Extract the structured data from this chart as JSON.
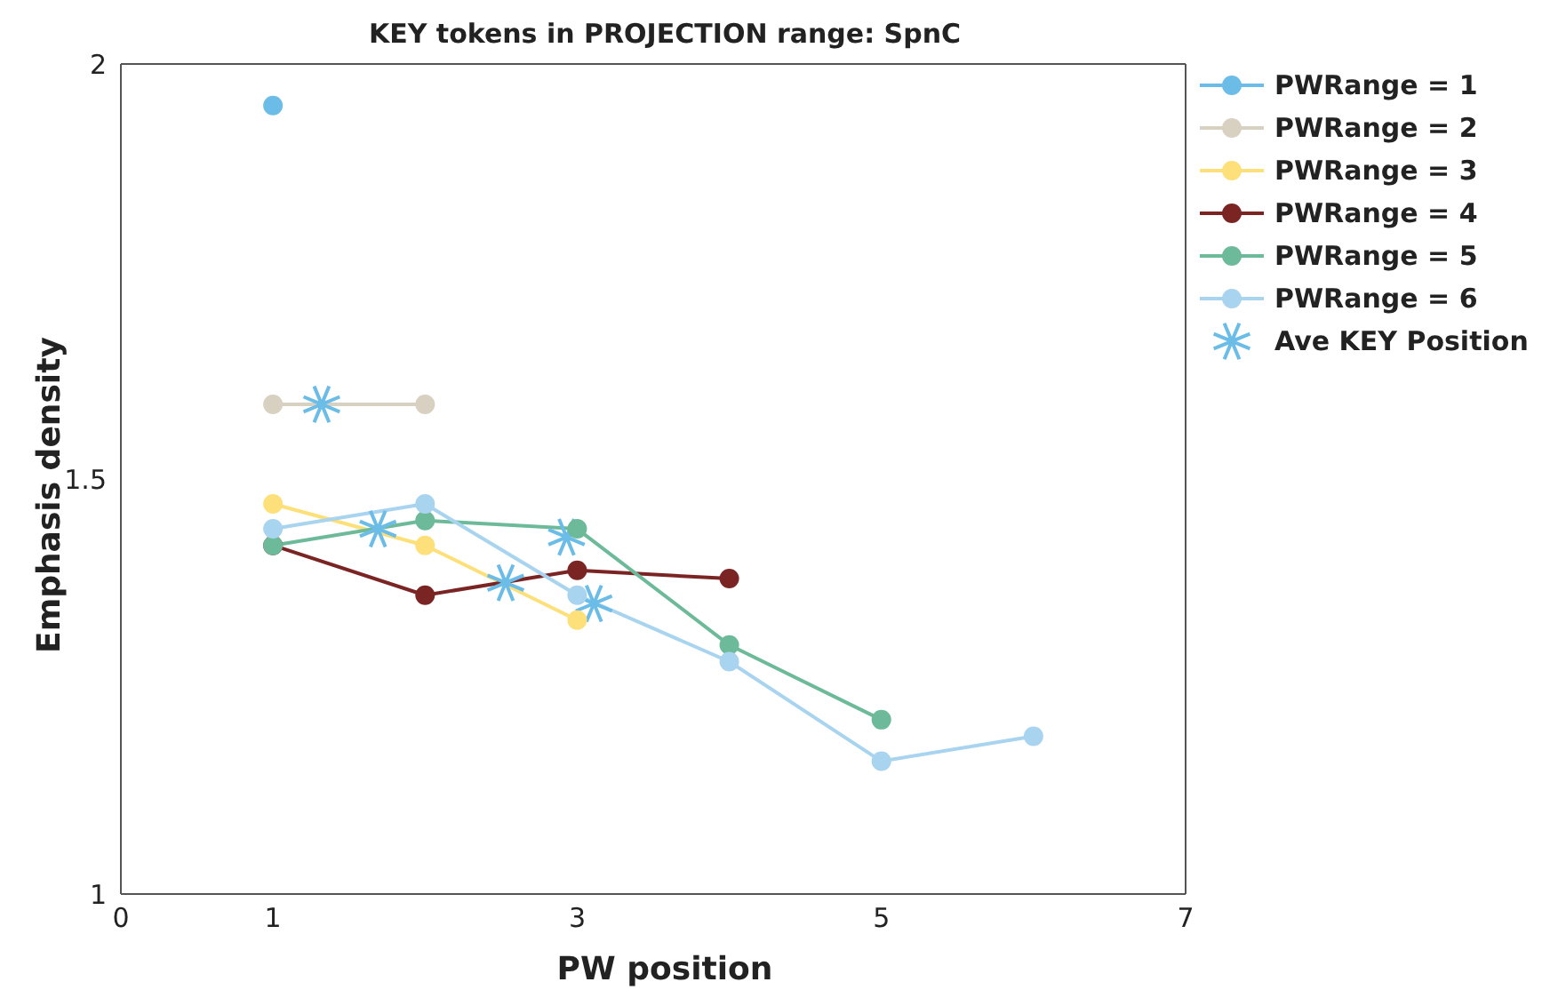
{
  "chart_data": {
    "type": "line",
    "title": "KEY tokens in PROJECTION range: SpnC",
    "xlabel": "PW position",
    "ylabel": "Emphasis density",
    "xlim": [
      0,
      7
    ],
    "xticks": [
      0,
      1,
      3,
      5,
      7
    ],
    "ylim": [
      1,
      2
    ],
    "yticks": [
      1,
      1.5,
      2
    ],
    "grid": false,
    "legend": "top right",
    "marker": "circle",
    "series": [
      {
        "name": "PWRange = 1",
        "color": "#6bbde8",
        "x": [
          1
        ],
        "values": [
          1.95
        ]
      },
      {
        "name": "PWRange = 2",
        "color": "#d8d0c0",
        "x": [
          1,
          2
        ],
        "values": [
          1.59,
          1.59
        ]
      },
      {
        "name": "PWRange = 3",
        "color": "#fde07a",
        "x": [
          1,
          2,
          3
        ],
        "values": [
          1.47,
          1.42,
          1.33
        ]
      },
      {
        "name": "PWRange = 4",
        "color": "#7b2424",
        "x": [
          1,
          2,
          3,
          4
        ],
        "values": [
          1.42,
          1.36,
          1.39,
          1.38
        ]
      },
      {
        "name": "PWRange = 5",
        "color": "#6dba9a",
        "x": [
          1,
          2,
          3,
          4,
          5
        ],
        "values": [
          1.42,
          1.45,
          1.44,
          1.3,
          1.21
        ]
      },
      {
        "name": "PWRange = 6",
        "color": "#a8d4ef",
        "x": [
          1,
          2,
          3,
          4,
          5,
          6
        ],
        "values": [
          1.44,
          1.47,
          1.36,
          1.28,
          1.16,
          1.19
        ]
      },
      {
        "name": "Ave KEY Position",
        "type": "scatter",
        "marker": "cross",
        "color": "#6bbde8",
        "x": [
          1.32,
          1.69,
          2.53,
          2.93,
          3.11
        ],
        "values": [
          1.59,
          1.44,
          1.375,
          1.43,
          1.35
        ]
      }
    ]
  }
}
